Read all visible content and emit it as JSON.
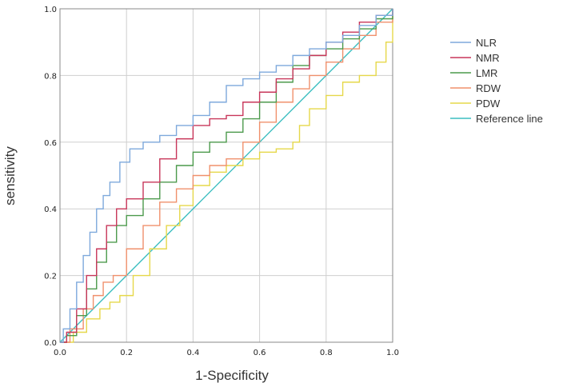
{
  "chart_data": {
    "type": "line",
    "title": "",
    "xlabel": "1-Specificity",
    "ylabel": "sensitivity",
    "xlim": [
      0,
      1
    ],
    "ylim": [
      0,
      1
    ],
    "xticks": [
      "0.0",
      "0.2",
      "0.4",
      "0.6",
      "0.8",
      "1.0"
    ],
    "yticks": [
      "0.0",
      "0.2",
      "0.4",
      "0.6",
      "0.8",
      "1.0"
    ],
    "grid": true,
    "legend_position": "right",
    "series": [
      {
        "name": "NLR",
        "color": "#7ea9dc",
        "x": [
          0,
          0.01,
          0.03,
          0.05,
          0.07,
          0.09,
          0.11,
          0.13,
          0.15,
          0.18,
          0.21,
          0.25,
          0.3,
          0.35,
          0.4,
          0.45,
          0.5,
          0.55,
          0.6,
          0.65,
          0.7,
          0.75,
          0.8,
          0.85,
          0.9,
          0.95,
          1.0
        ],
        "y": [
          0,
          0.04,
          0.1,
          0.18,
          0.26,
          0.33,
          0.4,
          0.44,
          0.48,
          0.54,
          0.58,
          0.6,
          0.62,
          0.65,
          0.68,
          0.72,
          0.77,
          0.79,
          0.81,
          0.83,
          0.86,
          0.88,
          0.9,
          0.92,
          0.95,
          0.98,
          1.0
        ]
      },
      {
        "name": "NMR",
        "color": "#c8365a",
        "x": [
          0,
          0.02,
          0.05,
          0.08,
          0.11,
          0.14,
          0.17,
          0.2,
          0.25,
          0.3,
          0.35,
          0.4,
          0.45,
          0.5,
          0.55,
          0.6,
          0.65,
          0.7,
          0.75,
          0.8,
          0.85,
          0.9,
          0.95,
          1.0
        ],
        "y": [
          0,
          0.03,
          0.1,
          0.2,
          0.28,
          0.35,
          0.4,
          0.43,
          0.48,
          0.55,
          0.61,
          0.65,
          0.67,
          0.68,
          0.72,
          0.75,
          0.79,
          0.82,
          0.86,
          0.9,
          0.93,
          0.96,
          0.98,
          1.0
        ]
      },
      {
        "name": "LMR",
        "color": "#4c9a4c",
        "x": [
          0,
          0.02,
          0.05,
          0.08,
          0.11,
          0.14,
          0.17,
          0.2,
          0.25,
          0.3,
          0.35,
          0.4,
          0.45,
          0.5,
          0.55,
          0.6,
          0.65,
          0.7,
          0.75,
          0.8,
          0.85,
          0.9,
          0.95,
          1.0
        ],
        "y": [
          0,
          0.02,
          0.08,
          0.16,
          0.24,
          0.3,
          0.35,
          0.38,
          0.43,
          0.48,
          0.53,
          0.57,
          0.6,
          0.63,
          0.67,
          0.72,
          0.78,
          0.83,
          0.86,
          0.88,
          0.91,
          0.94,
          0.97,
          1.0
        ]
      },
      {
        "name": "RDW",
        "color": "#f0906c",
        "x": [
          0,
          0.03,
          0.07,
          0.1,
          0.13,
          0.16,
          0.2,
          0.25,
          0.3,
          0.35,
          0.4,
          0.45,
          0.5,
          0.55,
          0.6,
          0.65,
          0.7,
          0.75,
          0.8,
          0.85,
          0.9,
          0.95,
          1.0
        ],
        "y": [
          0,
          0.04,
          0.1,
          0.14,
          0.18,
          0.2,
          0.28,
          0.35,
          0.42,
          0.46,
          0.5,
          0.53,
          0.55,
          0.6,
          0.66,
          0.72,
          0.76,
          0.8,
          0.84,
          0.88,
          0.92,
          0.96,
          1.0
        ]
      },
      {
        "name": "PDW",
        "color": "#e6d84a",
        "x": [
          0,
          0.04,
          0.08,
          0.12,
          0.15,
          0.18,
          0.22,
          0.27,
          0.32,
          0.36,
          0.4,
          0.45,
          0.5,
          0.55,
          0.6,
          0.65,
          0.7,
          0.72,
          0.75,
          0.8,
          0.85,
          0.9,
          0.95,
          0.98,
          1.0
        ],
        "y": [
          0,
          0.03,
          0.07,
          0.1,
          0.12,
          0.14,
          0.2,
          0.28,
          0.35,
          0.41,
          0.47,
          0.51,
          0.53,
          0.55,
          0.57,
          0.58,
          0.6,
          0.65,
          0.7,
          0.74,
          0.78,
          0.8,
          0.84,
          0.9,
          1.0
        ]
      },
      {
        "name": "Reference line",
        "color": "#3cbec0",
        "x": [
          0,
          1
        ],
        "y": [
          0,
          1
        ]
      }
    ]
  }
}
